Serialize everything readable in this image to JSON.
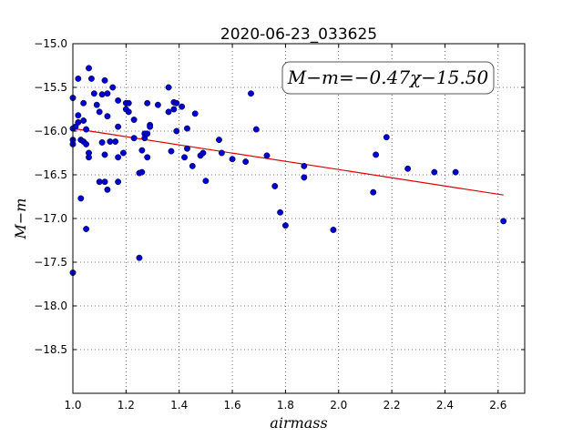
{
  "chart_data": {
    "type": "scatter",
    "title": "2020-06-23_033625",
    "xlabel": "airmass",
    "ylabel": "M−m",
    "annotation": "M−m=−0.47χ−15.50",
    "xlim": [
      1.0,
      2.7
    ],
    "ylim": [
      -19.0,
      -15.0
    ],
    "y_inverted": true,
    "grid": true,
    "xticks": [
      "1.0",
      "1.2",
      "1.4",
      "1.6",
      "1.8",
      "2.0",
      "2.2",
      "2.4",
      "2.6"
    ],
    "xtick_values": [
      1.0,
      1.2,
      1.4,
      1.6,
      1.8,
      2.0,
      2.2,
      2.4,
      2.6
    ],
    "yticks": [
      "−15.0",
      "−15.5",
      "−16.0",
      "−16.5",
      "−17.0",
      "−17.5",
      "−18.0",
      "−18.5"
    ],
    "ytick_values": [
      -15.0,
      -15.5,
      -16.0,
      -16.5,
      -17.0,
      -17.5,
      -18.0,
      -18.5
    ],
    "fit": {
      "slope": -0.47,
      "intercept": -15.5,
      "x_range": [
        1.0,
        2.62
      ],
      "color": "#dd0000"
    },
    "point_color": "#0000cc",
    "points": [
      [
        1.0,
        -17.62
      ],
      [
        1.0,
        -15.62
      ],
      [
        1.0,
        -16.1
      ],
      [
        1.0,
        -16.15
      ],
      [
        1.0,
        -15.97
      ],
      [
        1.01,
        -15.95
      ],
      [
        1.02,
        -15.4
      ],
      [
        1.02,
        -15.82
      ],
      [
        1.02,
        -15.9
      ],
      [
        1.03,
        -16.1
      ],
      [
        1.03,
        -16.77
      ],
      [
        1.04,
        -15.88
      ],
      [
        1.04,
        -16.12
      ],
      [
        1.04,
        -15.68
      ],
      [
        1.05,
        -15.98
      ],
      [
        1.05,
        -16.15
      ],
      [
        1.05,
        -17.12
      ],
      [
        1.06,
        -15.28
      ],
      [
        1.06,
        -16.3
      ],
      [
        1.06,
        -16.25
      ],
      [
        1.07,
        -15.4
      ],
      [
        1.08,
        -15.57
      ],
      [
        1.09,
        -15.7
      ],
      [
        1.1,
        -15.78
      ],
      [
        1.1,
        -16.58
      ],
      [
        1.11,
        -15.58
      ],
      [
        1.11,
        -16.13
      ],
      [
        1.12,
        -15.42
      ],
      [
        1.12,
        -16.58
      ],
      [
        1.12,
        -16.27
      ],
      [
        1.13,
        -15.57
      ],
      [
        1.13,
        -15.83
      ],
      [
        1.13,
        -16.67
      ],
      [
        1.14,
        -16.12
      ],
      [
        1.15,
        -15.5
      ],
      [
        1.16,
        -16.12
      ],
      [
        1.17,
        -15.65
      ],
      [
        1.17,
        -15.95
      ],
      [
        1.17,
        -16.3
      ],
      [
        1.17,
        -16.58
      ],
      [
        1.19,
        -16.25
      ],
      [
        1.2,
        -15.68
      ],
      [
        1.2,
        -15.75
      ],
      [
        1.21,
        -15.68
      ],
      [
        1.21,
        -15.78
      ],
      [
        1.23,
        -15.87
      ],
      [
        1.23,
        -16.08
      ],
      [
        1.25,
        -17.45
      ],
      [
        1.25,
        -16.48
      ],
      [
        1.26,
        -16.47
      ],
      [
        1.26,
        -16.22
      ],
      [
        1.27,
        -16.03
      ],
      [
        1.27,
        -16.08
      ],
      [
        1.28,
        -15.68
      ],
      [
        1.28,
        -16.03
      ],
      [
        1.28,
        -16.3
      ],
      [
        1.29,
        -15.93
      ],
      [
        1.29,
        -15.95
      ],
      [
        1.32,
        -15.7
      ],
      [
        1.36,
        -15.5
      ],
      [
        1.36,
        -15.78
      ],
      [
        1.37,
        -16.23
      ],
      [
        1.38,
        -15.67
      ],
      [
        1.38,
        -15.75
      ],
      [
        1.39,
        -15.68
      ],
      [
        1.39,
        -16.0
      ],
      [
        1.41,
        -15.72
      ],
      [
        1.42,
        -16.3
      ],
      [
        1.43,
        -15.97
      ],
      [
        1.43,
        -16.2
      ],
      [
        1.45,
        -16.4
      ],
      [
        1.46,
        -15.8
      ],
      [
        1.48,
        -16.28
      ],
      [
        1.49,
        -16.25
      ],
      [
        1.5,
        -16.57
      ],
      [
        1.55,
        -16.1
      ],
      [
        1.56,
        -16.25
      ],
      [
        1.6,
        -16.32
      ],
      [
        1.65,
        -16.35
      ],
      [
        1.67,
        -15.57
      ],
      [
        1.69,
        -15.98
      ],
      [
        1.73,
        -16.28
      ],
      [
        1.76,
        -16.63
      ],
      [
        1.78,
        -16.93
      ],
      [
        1.8,
        -17.08
      ],
      [
        1.87,
        -16.4
      ],
      [
        1.87,
        -16.53
      ],
      [
        1.98,
        -17.13
      ],
      [
        2.13,
        -16.7
      ],
      [
        2.14,
        -16.27
      ],
      [
        2.18,
        -16.07
      ],
      [
        2.26,
        -16.43
      ],
      [
        2.36,
        -16.47
      ],
      [
        2.44,
        -16.47
      ],
      [
        2.62,
        -17.03
      ]
    ]
  }
}
